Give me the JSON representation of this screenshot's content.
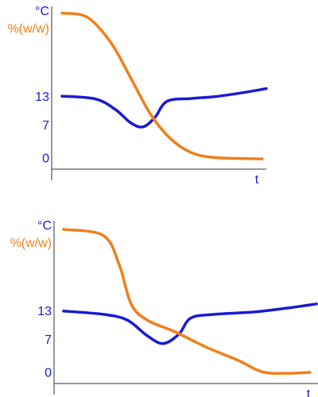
{
  "chart_data": [
    {
      "type": "line",
      "xlabel": "t",
      "xlim": [
        0,
        100
      ],
      "ylim": [
        -2.5,
        32
      ],
      "yticks": [
        0,
        7,
        13
      ],
      "series": [
        {
          "name": "°C",
          "color": "#1a1ad6",
          "x": [
            4.8,
            20.4,
            29.6,
            37,
            42.6,
            48.1,
            53.7,
            64.8,
            75.9,
            87,
            100
          ],
          "values": [
            13.3,
            12.7,
            10.5,
            7.6,
            6.8,
            8.8,
            12.2,
            12.8,
            13.2,
            13.9,
            14.9
          ]
        },
        {
          "name": "%(w/w)",
          "color": "#f07f1a",
          "x": [
            4.8,
            16.7,
            27.8,
            37,
            46.3,
            55.6,
            64.8,
            75.9,
            98.1
          ],
          "values": [
            30.9,
            30,
            24.5,
            17,
            9.3,
            4.2,
            1.4,
            0.3,
            0
          ]
        }
      ]
    },
    {
      "type": "line",
      "xlabel": "t",
      "xlim": [
        0,
        100
      ],
      "ylim": [
        -2.5,
        32
      ],
      "yticks": [
        0,
        7,
        13
      ],
      "series": [
        {
          "name": "°C",
          "color": "#1a1ad6",
          "x": [
            3.6,
            18.7,
            27.7,
            35.2,
            41.3,
            47.3,
            51.8,
            60.8,
            75.9,
            88,
            99.4
          ],
          "values": [
            13.2,
            12.5,
            11.3,
            8,
            6.3,
            8.3,
            11.7,
            12.5,
            13,
            13.8,
            14.7
          ]
        },
        {
          "name": "%(w/w)",
          "color": "#f07f1a",
          "x": [
            3.6,
            18.7,
            24.7,
            29.2,
            35.2,
            45.8,
            57.8,
            69.9,
            78.9,
            88,
            97
          ],
          "values": [
            30.5,
            29.2,
            23,
            14.7,
            11.3,
            8.8,
            5.5,
            2.7,
            0.3,
            0,
            0.2
          ]
        }
      ]
    }
  ]
}
